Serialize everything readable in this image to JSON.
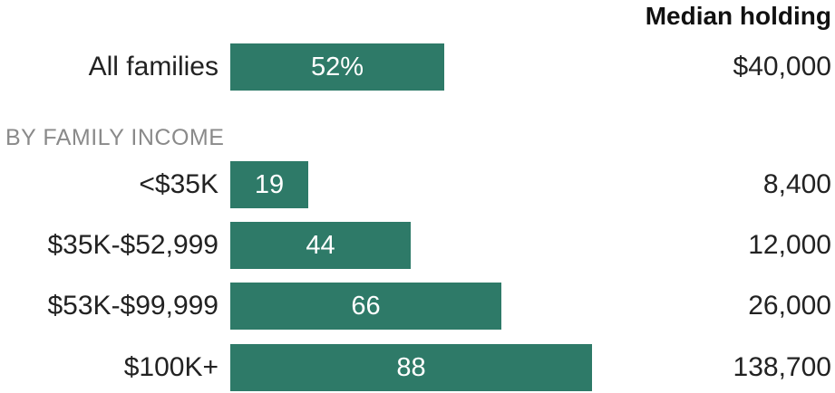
{
  "chart_data": {
    "type": "bar",
    "orientation": "horizontal",
    "title": "",
    "column_header": "Median holding",
    "section_label": "BY FAMILY INCOME",
    "bar_color": "#2e7a68",
    "xlim": [
      0,
      100
    ],
    "rows": [
      {
        "category": "All families",
        "value": 52,
        "value_label": "52%",
        "median_holding": "$40,000",
        "group": "total"
      },
      {
        "category": "<$35K",
        "value": 19,
        "value_label": "19",
        "median_holding": "8,400",
        "group": "income"
      },
      {
        "category": "$35K-$52,999",
        "value": 44,
        "value_label": "44",
        "median_holding": "12,000",
        "group": "income"
      },
      {
        "category": "$53K-$99,999",
        "value": 66,
        "value_label": "66",
        "median_holding": "26,000",
        "group": "income"
      },
      {
        "category": "$100K+",
        "value": 88,
        "value_label": "88",
        "median_holding": "138,700",
        "group": "income"
      }
    ]
  }
}
